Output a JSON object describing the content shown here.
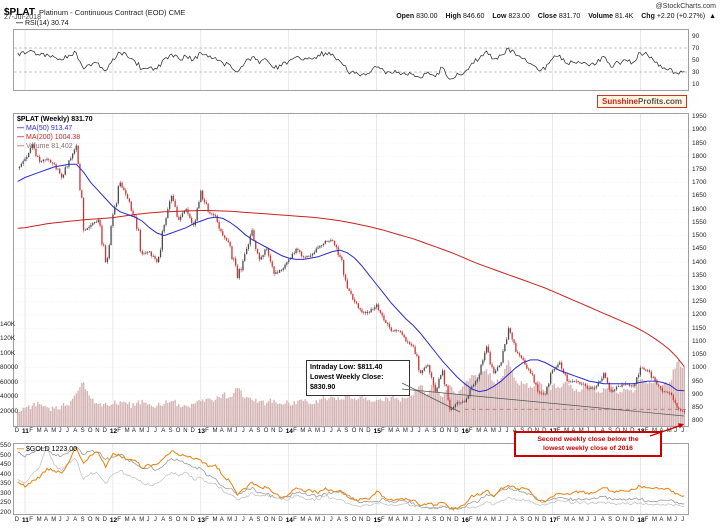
{
  "header": {
    "symbol": "$PLAT",
    "description": "Platinum - Continuous Contract (EOD) CME",
    "date": "27-Jul-2018",
    "source": "@StockCharts.com"
  },
  "quote": {
    "open_label": "Open",
    "open": "830.00",
    "high_label": "High",
    "high": "846.60",
    "low_label": "Low",
    "low": "823.00",
    "close_label": "Close",
    "close": "831.70",
    "volume_label": "Volume",
    "volume": "81.4K",
    "chg_label": "Chg",
    "chg": "+2.20 (+0.27%)",
    "chg_arrow": "▲"
  },
  "panels": {
    "rsi_legend": "RSI(14) 30.74",
    "main_legend_symbol": "$PLAT (Weekly) 831.70",
    "ma50_legend": "MA(50) 913.47",
    "ma200_legend": "MA(200) 1004.38",
    "volume_legend": "Volume 81,402",
    "gold_legend": "$GOLD 1223.00"
  },
  "branding": {
    "part1": "Sunshine",
    "part2": "Profits.com"
  },
  "annotations": {
    "intraday_line1": "Intraday Low: $811.40",
    "intraday_line2": "Lowest Weekly Close:",
    "intraday_line3": "$830.90",
    "red_line1": "Second weekly close below the",
    "red_line2": "lowest weekly close of 2016"
  },
  "colors": {
    "ma50": "#2b2bd0",
    "ma200": "#cc2222",
    "candle_up": "#4a4a4a",
    "candle_down": "#cc3333",
    "volume_bar": "#c79b9b",
    "gold": "#e8820e",
    "gray1": "#bdbdbd",
    "gray2": "#8f8f8f",
    "rsi": "#222222",
    "accent_red": "#cc0000",
    "support": "#aa4444"
  },
  "axes": {
    "rsi_ticks": [
      90,
      70,
      50,
      30,
      10
    ],
    "price_ticks": [
      1950,
      1900,
      1850,
      1800,
      1750,
      1700,
      1650,
      1600,
      1550,
      1500,
      1450,
      1400,
      1350,
      1300,
      1250,
      1200,
      1150,
      1100,
      1050,
      1000,
      950,
      900,
      850,
      800
    ],
    "volume_ticks": [
      {
        "label": "140K",
        "k": 140
      },
      {
        "label": "120K",
        "k": 120
      },
      {
        "label": "100K",
        "k": 100
      },
      {
        "label": "80000",
        "k": 80
      },
      {
        "label": "60000",
        "k": 60
      },
      {
        "label": "40000",
        "k": 40
      },
      {
        "label": "20000",
        "k": 20
      }
    ],
    "gold_ticks": [
      550,
      500,
      450,
      400,
      350,
      300,
      250,
      200
    ],
    "x_labels": [
      "D",
      "11",
      "F",
      "M",
      "A",
      "M",
      "J",
      "J",
      "A",
      "S",
      "O",
      "N",
      "D",
      "12",
      "F",
      "M",
      "A",
      "M",
      "J",
      "J",
      "A",
      "S",
      "O",
      "N",
      "D",
      "13",
      "F",
      "M",
      "A",
      "M",
      "J",
      "J",
      "A",
      "S",
      "O",
      "N",
      "D",
      "14",
      "F",
      "M",
      "A",
      "M",
      "J",
      "J",
      "A",
      "S",
      "O",
      "N",
      "D",
      "15",
      "F",
      "M",
      "A",
      "M",
      "J",
      "J",
      "A",
      "S",
      "O",
      "N",
      "D",
      "16",
      "F",
      "M",
      "A",
      "M",
      "J",
      "J",
      "A",
      "S",
      "O",
      "N",
      "D",
      "17",
      "F",
      "M",
      "A",
      "M",
      "J",
      "J",
      "A",
      "S",
      "O",
      "N",
      "D",
      "18",
      "F",
      "M",
      "A",
      "M",
      "J",
      "J"
    ]
  },
  "chart_data": {
    "type": "candlestick",
    "frequency": "monthly-approximation-of-weekly",
    "start": "Dec-2010",
    "end": "Jul-2018",
    "price_axis_range": [
      780,
      1960
    ],
    "rsi_range": [
      0,
      100
    ],
    "legend_position": "top-left",
    "grid": true,
    "support_line_price": 843,
    "support_line_start_month_index": 61,
    "platinum_close": [
      1755,
      1790,
      1845,
      1780,
      1790,
      1770,
      1720,
      1785,
      1840,
      1520,
      1540,
      1560,
      1400,
      1580,
      1700,
      1640,
      1570,
      1430,
      1440,
      1400,
      1540,
      1650,
      1560,
      1600,
      1540,
      1670,
      1590,
      1575,
      1500,
      1460,
      1340,
      1430,
      1520,
      1410,
      1450,
      1355,
      1370,
      1410,
      1450,
      1420,
      1425,
      1455,
      1480,
      1480,
      1420,
      1300,
      1250,
      1210,
      1210,
      1240,
      1180,
      1140,
      1140,
      1100,
      1080,
      980,
      1010,
      910,
      990,
      840,
      870,
      870,
      930,
      975,
      1080,
      980,
      1020,
      1150,
      1060,
      1030,
      980,
      910,
      900,
      990,
      1020,
      950,
      950,
      940,
      920,
      930,
      980,
      910,
      930,
      940,
      930,
      1000,
      990,
      950,
      910,
      905,
      850,
      831.7
    ],
    "ma50": [
      1705,
      1720,
      1730,
      1740,
      1750,
      1760,
      1765,
      1770,
      1770,
      1740,
      1700,
      1670,
      1640,
      1610,
      1590,
      1580,
      1570,
      1555,
      1530,
      1510,
      1500,
      1510,
      1520,
      1530,
      1545,
      1555,
      1565,
      1570,
      1565,
      1550,
      1530,
      1505,
      1485,
      1470,
      1455,
      1440,
      1425,
      1415,
      1410,
      1410,
      1415,
      1420,
      1430,
      1440,
      1445,
      1435,
      1415,
      1385,
      1350,
      1315,
      1280,
      1245,
      1215,
      1185,
      1160,
      1130,
      1095,
      1060,
      1025,
      995,
      965,
      940,
      920,
      910,
      915,
      930,
      950,
      975,
      1000,
      1020,
      1030,
      1030,
      1020,
      1005,
      990,
      980,
      970,
      960,
      950,
      945,
      940,
      940,
      940,
      940,
      940,
      945,
      950,
      950,
      945,
      935,
      915,
      913.5
    ],
    "ma200": [
      1528,
      1530,
      1535,
      1540,
      1545,
      1548,
      1551,
      1554,
      1557,
      1560,
      1562,
      1564,
      1566,
      1568,
      1572,
      1576,
      1580,
      1583,
      1586,
      1588,
      1590,
      1591,
      1592,
      1593,
      1594,
      1595,
      1595,
      1594,
      1593,
      1592,
      1590,
      1588,
      1586,
      1584,
      1582,
      1580,
      1578,
      1576,
      1574,
      1572,
      1570,
      1567,
      1564,
      1560,
      1556,
      1551,
      1546,
      1540,
      1534,
      1527,
      1520,
      1512,
      1504,
      1496,
      1488,
      1478,
      1468,
      1458,
      1448,
      1438,
      1427,
      1415,
      1403,
      1392,
      1382,
      1372,
      1362,
      1352,
      1342,
      1332,
      1322,
      1312,
      1302,
      1290,
      1278,
      1266,
      1254,
      1242,
      1230,
      1218,
      1206,
      1194,
      1182,
      1170,
      1158,
      1144,
      1128,
      1110,
      1090,
      1068,
      1040,
      1004.4
    ],
    "rsi": [
      62,
      60,
      65,
      58,
      60,
      55,
      50,
      58,
      62,
      35,
      40,
      45,
      32,
      52,
      62,
      55,
      48,
      35,
      38,
      35,
      52,
      60,
      52,
      56,
      50,
      62,
      55,
      54,
      45,
      42,
      30,
      45,
      55,
      44,
      50,
      36,
      40,
      48,
      55,
      50,
      52,
      58,
      62,
      60,
      48,
      32,
      28,
      26,
      28,
      38,
      32,
      28,
      30,
      26,
      26,
      20,
      30,
      22,
      38,
      18,
      28,
      30,
      45,
      52,
      65,
      52,
      58,
      70,
      58,
      52,
      44,
      34,
      34,
      52,
      58,
      44,
      46,
      44,
      40,
      44,
      56,
      38,
      46,
      50,
      46,
      62,
      58,
      46,
      36,
      36,
      28,
      30.7
    ],
    "volume_k": [
      20,
      25,
      28,
      30,
      26,
      24,
      28,
      28,
      45,
      60,
      38,
      30,
      32,
      30,
      34,
      30,
      28,
      36,
      30,
      28,
      30,
      34,
      30,
      28,
      30,
      34,
      38,
      36,
      44,
      40,
      52,
      38,
      36,
      34,
      32,
      36,
      30,
      32,
      30,
      34,
      30,
      32,
      38,
      40,
      36,
      42,
      38,
      44,
      36,
      36,
      34,
      40,
      36,
      38,
      42,
      56,
      44,
      60,
      40,
      56,
      44,
      60,
      70,
      64,
      78,
      60,
      66,
      90,
      62,
      58,
      54,
      62,
      48,
      56,
      52,
      60,
      48,
      50,
      56,
      46,
      52,
      56,
      44,
      50,
      46,
      64,
      58,
      62,
      56,
      60,
      88,
      81.4
    ],
    "gold": [
      1390,
      1330,
      1410,
      1440,
      1560,
      1530,
      1500,
      1630,
      1820,
      1620,
      1720,
      1750,
      1570,
      1740,
      1710,
      1670,
      1660,
      1560,
      1600,
      1610,
      1690,
      1770,
      1720,
      1710,
      1670,
      1660,
      1580,
      1600,
      1470,
      1390,
      1230,
      1310,
      1390,
      1330,
      1320,
      1250,
      1200,
      1240,
      1320,
      1280,
      1290,
      1250,
      1320,
      1280,
      1290,
      1210,
      1170,
      1180,
      1180,
      1280,
      1210,
      1180,
      1180,
      1190,
      1170,
      1100,
      1130,
      1110,
      1140,
      1060,
      1060,
      1110,
      1230,
      1230,
      1290,
      1210,
      1320,
      1350,
      1310,
      1320,
      1270,
      1170,
      1150,
      1210,
      1250,
      1250,
      1270,
      1270,
      1240,
      1270,
      1320,
      1280,
      1270,
      1280,
      1300,
      1340,
      1320,
      1320,
      1310,
      1300,
      1250,
      1223
    ],
    "gray_series_1": [
      30,
      28,
      33,
      37,
      48,
      38,
      35,
      40,
      41,
      30,
      34,
      33,
      28,
      33,
      35,
      32,
      31,
      28,
      27,
      28,
      31,
      34,
      32,
      34,
      30,
      31,
      28,
      28,
      24,
      22,
      19,
      20,
      23,
      21,
      22,
      20,
      19,
      19,
      21,
      20,
      19,
      19,
      21,
      20,
      19,
      17,
      16,
      15.5,
      15.7,
      17,
      16.5,
      16.6,
      16,
      16.7,
      15.7,
      14.8,
      14.6,
      14.5,
      15.5,
      14.1,
      13.8,
      14.3,
      14.9,
      15.4,
      17.8,
      16,
      18.6,
      20.4,
      18.7,
      19.2,
      17.8,
      16.5,
      15.9,
      17.5,
      18.3,
      18.2,
      17.2,
      17.3,
      16.6,
      16.8,
      17.6,
      16.6,
      16.7,
      16.5,
      16.9,
      17.3,
      16.4,
      16.3,
      16.3,
      16.4,
      16.1,
      15.5
    ],
    "gray_series_2": [
      560,
      520,
      560,
      580,
      590,
      540,
      530,
      560,
      600,
      540,
      570,
      560,
      500,
      520,
      540,
      500,
      470,
      430,
      440,
      420,
      460,
      510,
      490,
      470,
      440,
      430,
      370,
      350,
      290,
      270,
      220,
      250,
      280,
      240,
      230,
      200,
      190,
      210,
      240,
      230,
      220,
      210,
      230,
      240,
      250,
      220,
      180,
      160,
      165,
      170,
      190,
      170,
      180,
      170,
      160,
      125,
      120,
      115,
      130,
      110,
      112,
      120,
      165,
      175,
      225,
      210,
      260,
      280,
      255,
      245,
      225,
      180,
      165,
      190,
      200,
      190,
      185,
      180,
      180,
      190,
      210,
      190,
      185,
      180,
      190,
      185,
      175,
      170,
      180,
      180,
      165,
      150
    ]
  }
}
